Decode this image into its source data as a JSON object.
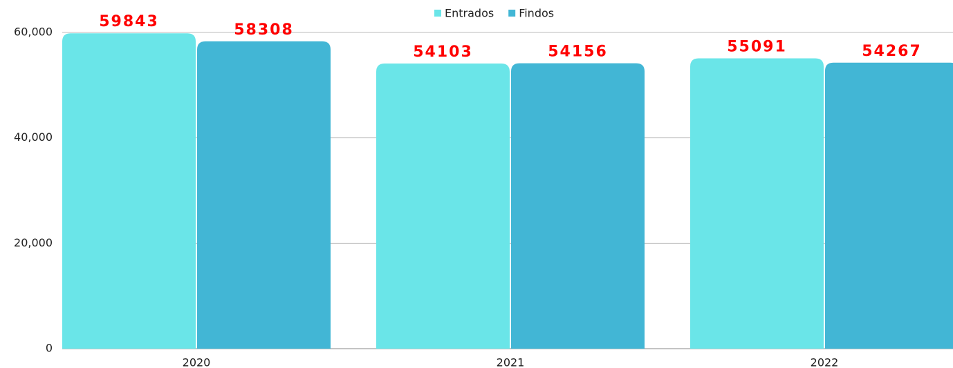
{
  "chart_data": {
    "type": "bar",
    "categories": [
      "2020",
      "2021",
      "2022"
    ],
    "series": [
      {
        "name": "Entrados",
        "color": "#6ae5e8",
        "values": [
          59843,
          54103,
          55091
        ]
      },
      {
        "name": "Findos",
        "color": "#42b6d5",
        "values": [
          58308,
          54156,
          54267
        ]
      }
    ],
    "ylim": [
      0,
      60000
    ],
    "yticks": [
      0,
      {
        "value": 20000,
        "label": "20,000"
      },
      {
        "value": 40000,
        "label": "40,000"
      },
      {
        "value": 60000,
        "label": "60,000"
      }
    ],
    "grid": true,
    "legend": "top"
  }
}
